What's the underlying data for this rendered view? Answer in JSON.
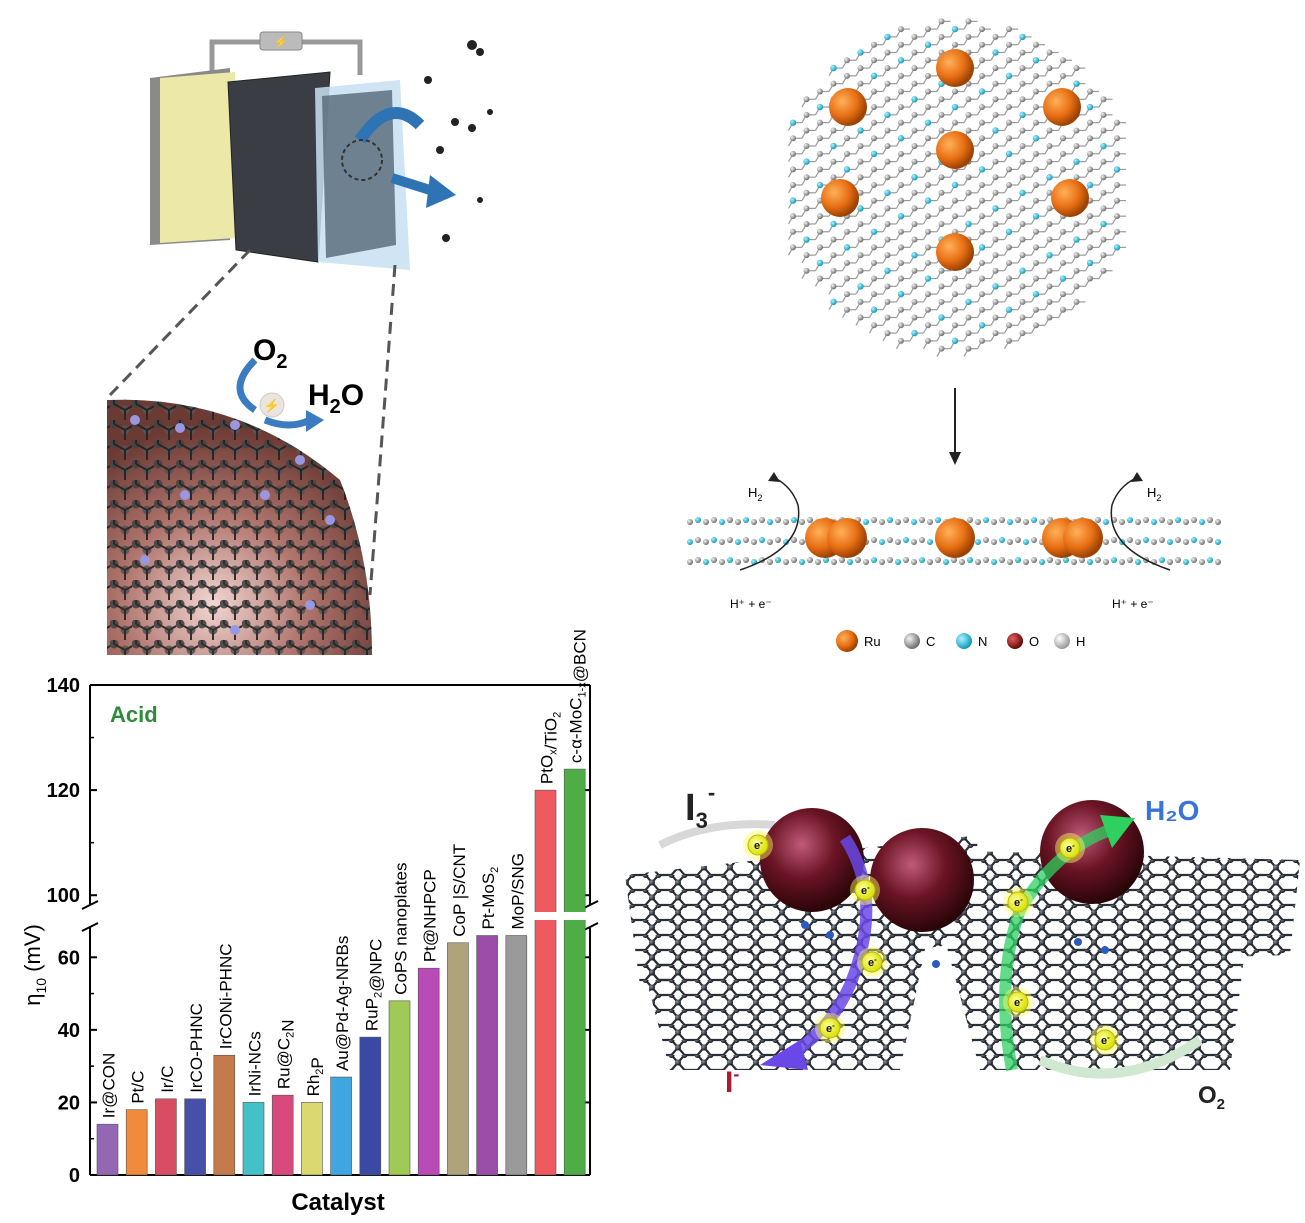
{
  "device": {
    "o2_label": "O",
    "o2_sub": "2",
    "h2o_label_pre": "H",
    "h2o_label_sub": "2",
    "h2o_label_post": "O"
  },
  "lattice": {
    "h2_left_pre": "H",
    "h2_left_sub": "2",
    "h2_right_pre": "H",
    "h2_right_sub": "2",
    "proton_left": "H⁺ + e⁻",
    "proton_right": "H⁺ + e⁻",
    "legend": [
      {
        "label": "Ru",
        "color": "#e8781e"
      },
      {
        "label": "C",
        "color": "#8a8a8a"
      },
      {
        "label": "N",
        "color": "#1fb8d4"
      },
      {
        "label": "O",
        "color": "#8e1010"
      },
      {
        "label": "H",
        "color": "#bdbdbd"
      }
    ]
  },
  "mechanism": {
    "i3_label": "I",
    "i3_sub": "3",
    "i3_sup": "-",
    "i_label": "I",
    "i_sup": "-",
    "h2o_label": "H₂O",
    "o2_label": "O",
    "o2_sub": "2",
    "electron": "e",
    "electron_sup": "-"
  },
  "chart_data": {
    "type": "bar",
    "legend_text": "Acid",
    "ylabel": "η",
    "ylabel_sub": "10",
    "ylabel_unit": " (mV)",
    "xlabel": "Catalyst",
    "y_ticks_lower": [
      0,
      20,
      40,
      60
    ],
    "y_ticks_upper": [
      100,
      120,
      140
    ],
    "axis_break": [
      70,
      97
    ],
    "grid": false,
    "categories": [
      "Ir@CON",
      "Pt/C",
      "Ir/C",
      "IrCO-PHNC",
      "IrCONi-PHNC",
      "IrNi-NCs",
      "Ru@C2N",
      "Rh2P",
      "Au@Pd-Ag-NRBs",
      "RuP2@NPC",
      "CoPS nanoplates",
      "Pt@NHPCP",
      "CoP|S/CNT",
      "Pt-MoS2",
      "MoP/SNG",
      "PtOx/TiO2",
      "c-α-MoC1-x@BCN"
    ],
    "label_parts": [
      [
        [
          "Ir@CON",
          ""
        ]
      ],
      [
        [
          "Pt/C",
          ""
        ]
      ],
      [
        [
          "Ir/C",
          ""
        ]
      ],
      [
        [
          "IrCO-PHNC",
          ""
        ]
      ],
      [
        [
          "IrCONi-PHNC",
          ""
        ]
      ],
      [
        [
          "IrNi-NCs",
          ""
        ]
      ],
      [
        [
          "Ru@C",
          ""
        ],
        [
          "2",
          "sub"
        ],
        [
          "N",
          ""
        ]
      ],
      [
        [
          "Rh",
          ""
        ],
        [
          "2",
          "sub"
        ],
        [
          "P",
          ""
        ]
      ],
      [
        [
          "Au@Pd-Ag-NRBs",
          ""
        ]
      ],
      [
        [
          "RuP",
          ""
        ],
        [
          "2",
          "sub"
        ],
        [
          "@NPC",
          ""
        ]
      ],
      [
        [
          "CoPS nanoplates",
          ""
        ]
      ],
      [
        [
          "Pt@NHPCP",
          ""
        ]
      ],
      [
        [
          "CoP |S/CNT",
          ""
        ]
      ],
      [
        [
          "Pt-MoS",
          ""
        ],
        [
          "2",
          "sub"
        ]
      ],
      [
        [
          "MoP/SNG",
          ""
        ]
      ],
      [
        [
          "PtO",
          ""
        ],
        [
          "x",
          "sub"
        ],
        [
          "/TiO",
          ""
        ],
        [
          "2",
          "sub"
        ]
      ],
      [
        [
          "c-α-MoC",
          ""
        ],
        [
          "1-x",
          "sub"
        ],
        [
          "@BCN",
          ""
        ]
      ]
    ],
    "values": [
      14,
      18,
      21,
      21,
      33,
      20,
      22,
      20,
      27,
      38,
      48,
      57,
      64,
      66,
      66,
      120,
      124
    ],
    "colors": [
      "#9467b5",
      "#f08a3c",
      "#d84d62",
      "#4650a8",
      "#c47a4a",
      "#44c0c8",
      "#d8497e",
      "#dcd870",
      "#3fa6e0",
      "#3a4aa4",
      "#9fca55",
      "#b84bb7",
      "#aea37a",
      "#9b4ea8",
      "#9a9a9a",
      "#ef5a60",
      "#4fad48"
    ]
  }
}
